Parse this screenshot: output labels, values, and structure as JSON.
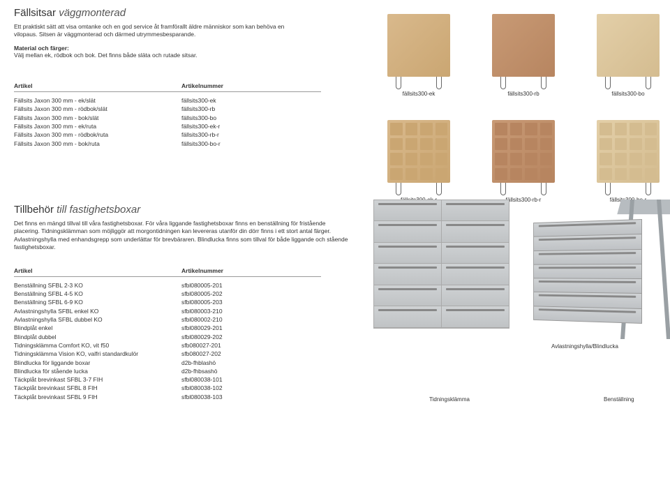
{
  "section1": {
    "title_main": "Fällsitsar",
    "title_accent": "väggmonterad",
    "intro": "Ett praktiskt sätt att visa omtanke och en god service åt framförallt äldre människor som kan behöva en vilopaus. Sitsen är väggmonterad och därmed utrymmesbesparande.",
    "material_label": "Material och färger:",
    "material_text": "Välj mellan ek, rödbok och bok. Det finns både släta och rutade sitsar.",
    "th_artikel": "Artikel",
    "th_artnum": "Artikelnummer",
    "rows": [
      {
        "a": "Fällsits Jaxon 300 mm - ek/slät",
        "n": "fällsits300-ek"
      },
      {
        "a": "Fällsits Jaxon 300 mm - rödbok/slät",
        "n": "fällsits300-rb"
      },
      {
        "a": "Fällsits Jaxon 300 mm - bok/slät",
        "n": "fällsits300-bo"
      },
      {
        "a": "Fällsits Jaxon 300 mm - ek/ruta",
        "n": "fällsits300-ek-r"
      },
      {
        "a": "Fällsits Jaxon 300 mm - rödbok/ruta",
        "n": "fällsits300-rb-r"
      },
      {
        "a": "Fällsits Jaxon 300 mm - bok/ruta",
        "n": "fällsits300-bo-r"
      }
    ],
    "img_captions_top": [
      "fällsits300-ek",
      "fällsits300-rb",
      "fällsits300-bo"
    ],
    "img_captions_bottom": [
      "fällsits300-ek-r",
      "fällsits300-rb-r",
      "fällsits300-bo-r"
    ]
  },
  "section2": {
    "title_main": "Tillbehör",
    "title_accent": "till fastighetsboxar",
    "intro": "Det finns en mängd tillval till våra fastighetsboxar. För våra liggande fastighetsboxar finns en benställning för fristående placering. Tidningsklämman som möjliggör att morgontidningen kan levereras utanför din dörr finns i ett stort antal färger. Avlastningshylla med enhandsgrepp som underlättar för brevbäraren. Blindlucka finns som tillval för både liggande och stående fastighetsboxar.",
    "th_artikel": "Artikel",
    "th_artnum": "Artikelnummer",
    "rows": [
      {
        "a": "Benställning SFBL 2-3 KO",
        "n": "sfbl080005-201"
      },
      {
        "a": "Benställning SFBL 4-5 KO",
        "n": "sfbl080005-202"
      },
      {
        "a": "Benställning SFBL 6-9 KO",
        "n": "sfbl080005-203"
      },
      {
        "a": "Avlastningshylla SFBL enkel KO",
        "n": "sfbl080003-210"
      },
      {
        "a": "Avlastningshylla SFBL dubbel KO",
        "n": "sfbl080002-210"
      },
      {
        "a": "Blindplåt enkel",
        "n": "sfbl080029-201"
      },
      {
        "a": "Blindplåt dubbel",
        "n": "sfbl080029-202"
      },
      {
        "a": "Tidningsklämma Comfort KO, vit f50",
        "n": "sfb080027-201"
      },
      {
        "a": "Tidningsklämma Vision KO, valfri standardkulör",
        "n": "sfb080027-202"
      },
      {
        "a": "Blindlucka för liggande boxar",
        "n": "d2b-fhblashö"
      },
      {
        "a": "Blindlucka för stående lucka",
        "n": "d2b-fhbsashö"
      },
      {
        "a": "Täckplåt brevinkast SFBL 3-7 FIH",
        "n": "sfbl080038-101"
      },
      {
        "a": "Täckplåt brevinkast SFBL 8 FIH",
        "n": "sfbl080038-102"
      },
      {
        "a": "Täckplåt brevinkast SFBL 9 FIH",
        "n": "sfbl080038-103"
      }
    ],
    "caption_avlast": "Avlastningshylla/Blindlucka",
    "caption_tidning": "Tidningsklämma",
    "caption_benst": "Benställning"
  },
  "colors": {
    "oak": "#caa672",
    "redbeech": "#b78560",
    "beech": "#d4bc90",
    "metal": "#c5c8ca",
    "text": "#333333"
  }
}
